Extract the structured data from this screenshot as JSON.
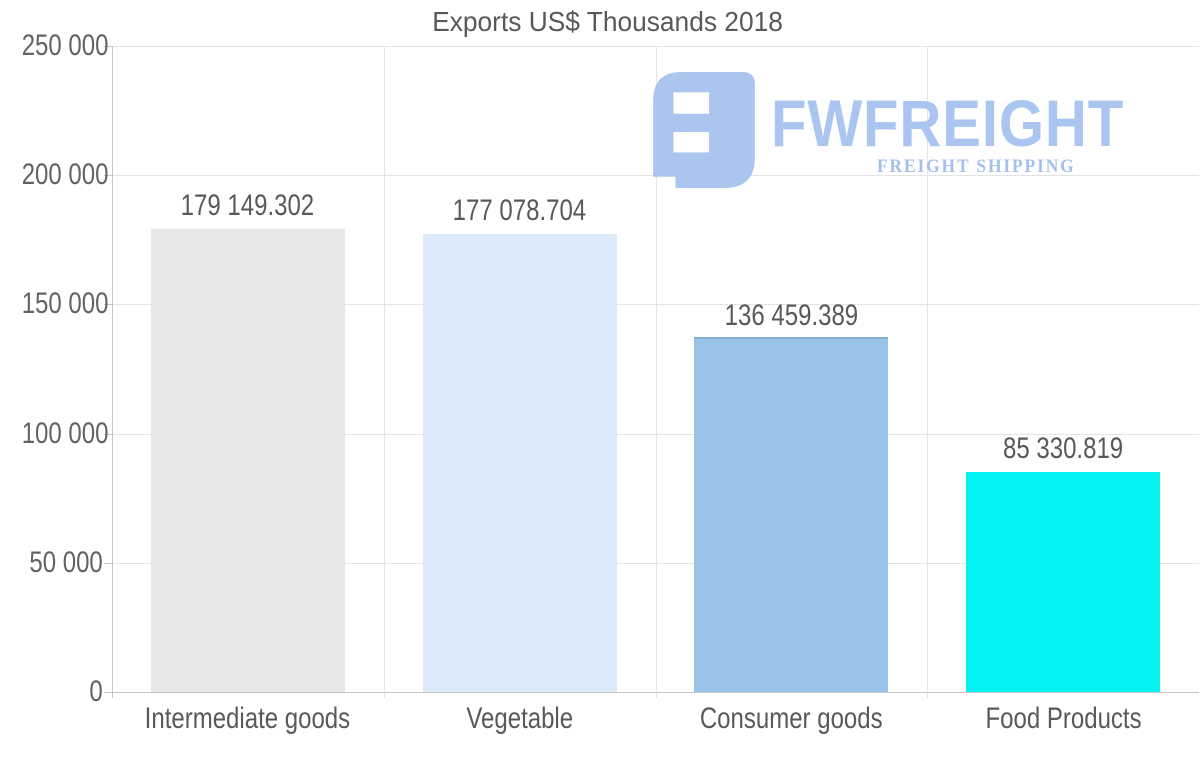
{
  "chart_data": {
    "type": "bar",
    "title": "Exports US$ Thousands 2018",
    "categories": [
      "Intermediate goods",
      "Vegetable",
      "Consumer goods",
      "Food Products"
    ],
    "values": [
      179149.302,
      177078.704,
      136459.389,
      85330.819
    ],
    "value_labels": [
      "179 149.302",
      "177 078.704",
      "136 459.389",
      "85 330.819"
    ],
    "bar_colors": [
      "#e7e7e7",
      "#dbe9f9",
      "#99c3e7",
      "#06f2f2"
    ],
    "bar_top_edge_colors": [
      null,
      null,
      "#86b1d7",
      null
    ],
    "xlabel": "",
    "ylabel": "",
    "ylim": [
      0,
      250000
    ],
    "yticks": [
      0,
      50000,
      100000,
      150000,
      200000,
      250000
    ],
    "ytick_labels": [
      "0",
      "50 000",
      "100 000",
      "150 000",
      "200 000",
      "250 000"
    ],
    "grid": true,
    "legend": "none",
    "text_color": "#595959",
    "gridline_color": "#e4e4e4",
    "axis_color": "#c6c6c6"
  },
  "watermark": {
    "brand": "FWFREIGHT",
    "tagline": "FREIGHT SHIPPING",
    "brand_color": "#a9c5f0",
    "tagline_color": "#a3c0ed",
    "icon": "fwfreight-monogram-icon",
    "icon_color": "#abc6ee"
  }
}
